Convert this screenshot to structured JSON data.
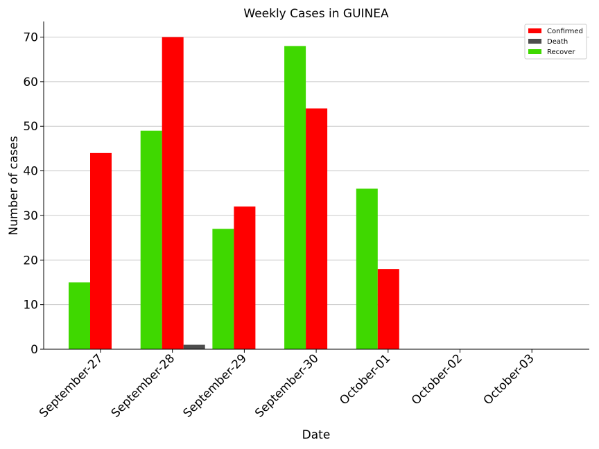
{
  "chart_data": {
    "type": "bar",
    "title": "Weekly Cases in GUINEA",
    "xlabel": "Date",
    "ylabel": "Number of cases",
    "categories": [
      "September-27",
      "September-28",
      "September-29",
      "September-30",
      "October-01",
      "October-02",
      "October-03"
    ],
    "series": [
      {
        "name": "Recover",
        "color": "#3fd800",
        "values": [
          15,
          49,
          27,
          68,
          36,
          0,
          0
        ]
      },
      {
        "name": "Confirmed",
        "color": "#ff0000",
        "values": [
          44,
          70,
          32,
          54,
          18,
          0,
          0
        ]
      },
      {
        "name": "Death",
        "color": "#4d4d4d",
        "values": [
          0,
          1,
          0,
          0,
          0,
          0,
          0
        ]
      }
    ],
    "legend_order": [
      "Confirmed",
      "Death",
      "Recover"
    ],
    "ylim": [
      0,
      73.5
    ],
    "yticks": [
      0,
      10,
      20,
      30,
      40,
      50,
      60,
      70
    ],
    "grid": "horizontal",
    "legend_position": "top-right"
  }
}
